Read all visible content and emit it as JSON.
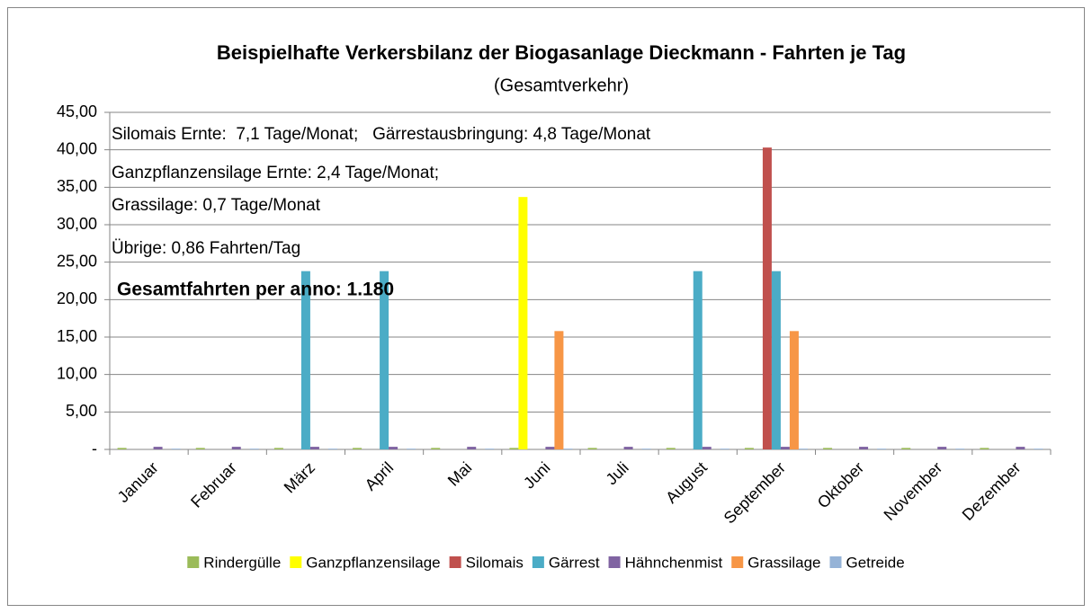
{
  "chart_data": {
    "type": "bar",
    "title": "Beispielhafte Verkersbilanz der Biogasanlage  Dieckmann - Fahrten je Tag",
    "subtitle": "(Gesamtverkehr)",
    "annotations": [
      "Silomais Ernte:  7,1 Tage/Monat;   Gärrestausbringung: 4,8 Tage/Monat",
      "Ganzpflanzensilage Ernte: 2,4 Tage/Monat;",
      "Grassilage: 0,7 Tage/Monat",
      "Übrige: 0,86 Fahrten/Tag"
    ],
    "highlight": "Gesamtfahrten per anno: 1.180",
    "categories": [
      "Januar",
      "Februar",
      "März",
      "April",
      "Mai",
      "Juni",
      "Juli",
      "August",
      "September",
      "Oktober",
      "November",
      "Dezember"
    ],
    "series": [
      {
        "name": "Rindergülle",
        "color": "#9bbb59",
        "values": [
          0.2,
          0.2,
          0.2,
          0.2,
          0.2,
          0.2,
          0.2,
          0.2,
          0.2,
          0.2,
          0.2,
          0.2
        ]
      },
      {
        "name": "Ganzpflanzensilage",
        "color": "#ffff00",
        "values": [
          0,
          0,
          0,
          0,
          0,
          33.7,
          0,
          0,
          0,
          0,
          0,
          0
        ]
      },
      {
        "name": "Silomais",
        "color": "#c0504d",
        "values": [
          0,
          0,
          0,
          0,
          0,
          0,
          0,
          0,
          40.3,
          0,
          0,
          0
        ]
      },
      {
        "name": "Gärrest",
        "color": "#4bacc6",
        "values": [
          0,
          0,
          23.8,
          23.8,
          0,
          0,
          0,
          23.8,
          23.8,
          0,
          0,
          0
        ]
      },
      {
        "name": "Hähnchenmist",
        "color": "#8064a2",
        "values": [
          0.35,
          0.35,
          0.35,
          0.35,
          0.35,
          0.35,
          0.35,
          0.35,
          0.35,
          0.35,
          0.35,
          0.35
        ]
      },
      {
        "name": "Grassilage",
        "color": "#f79646",
        "values": [
          0,
          0,
          0,
          0,
          0,
          15.8,
          0,
          0,
          15.8,
          0,
          0,
          0
        ]
      },
      {
        "name": "Getreide",
        "color": "#95b3d7",
        "values": [
          0.1,
          0.1,
          0.1,
          0.1,
          0.1,
          0.1,
          0.1,
          0.1,
          0.1,
          0.1,
          0.1,
          0.1
        ]
      }
    ],
    "ylim": [
      0,
      45
    ],
    "yticks": [
      {
        "value": 0,
        "label": "-"
      },
      {
        "value": 5,
        "label": "5,00"
      },
      {
        "value": 10,
        "label": "10,00"
      },
      {
        "value": 15,
        "label": "15,00"
      },
      {
        "value": 20,
        "label": "20,00"
      },
      {
        "value": 25,
        "label": "25,00"
      },
      {
        "value": 30,
        "label": "30,00"
      },
      {
        "value": 35,
        "label": "35,00"
      },
      {
        "value": 40,
        "label": "40,00"
      },
      {
        "value": 45,
        "label": "45,00"
      }
    ],
    "grid": true,
    "legend": "bottom"
  }
}
